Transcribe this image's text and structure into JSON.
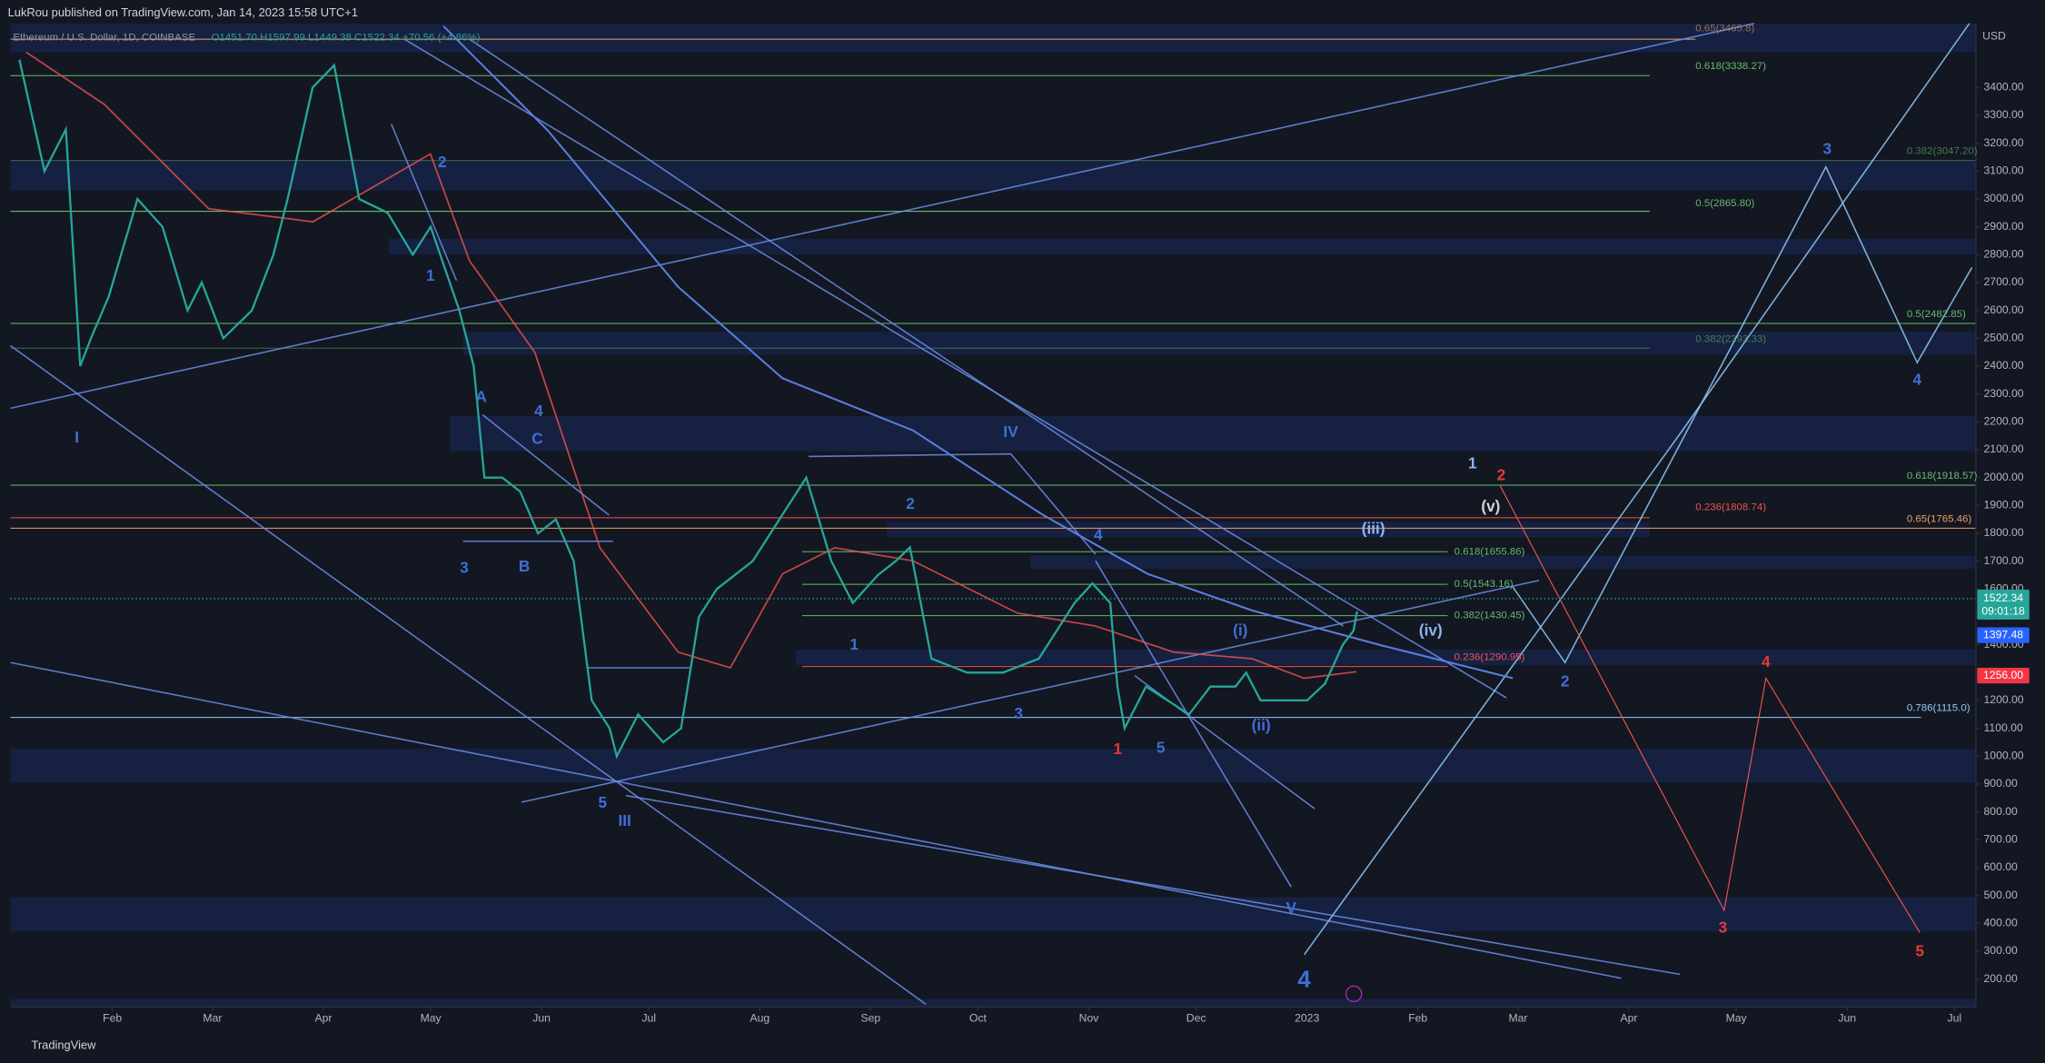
{
  "header": {
    "publisher": "LukRou published on TradingView.com, Jan 14, 2023 15:58 UTC+1",
    "symbol": "Ethereum / U.S. Dollar, 1D, COINBASE",
    "ohlc": "O1451.70 H1597.99 L1449.38 C1522.34 +70.56 (+4.86%)"
  },
  "chart_data": {
    "type": "line",
    "color": "#26a69a",
    "unit": "USD",
    "grid": false,
    "x": [
      5,
      12,
      18,
      22,
      25,
      30,
      38,
      45,
      52,
      56,
      62,
      70,
      76,
      80,
      87,
      93,
      100,
      108,
      115,
      120,
      128,
      132,
      135,
      140,
      145,
      150,
      155,
      160,
      165,
      170,
      172,
      178,
      185,
      190,
      195,
      200,
      210,
      220,
      225,
      232,
      238,
      245,
      250,
      254,
      260,
      270,
      280,
      290,
      300,
      305,
      310,
      312,
      314,
      320,
      326,
      332,
      338,
      345,
      348,
      352,
      360,
      365,
      370,
      375,
      378,
      379
    ],
    "values": [
      3500,
      3100,
      3250,
      2400,
      2500,
      2650,
      3000,
      2900,
      2600,
      2700,
      2500,
      2600,
      2800,
      3000,
      3400,
      3480,
      3000,
      2950,
      2800,
      2900,
      2600,
      2400,
      2000,
      2000,
      1950,
      1800,
      1850,
      1700,
      1200,
      1100,
      1000,
      1150,
      1050,
      1100,
      1500,
      1600,
      1700,
      1900,
      2000,
      1700,
      1550,
      1650,
      1700,
      1750,
      1350,
      1300,
      1300,
      1350,
      1550,
      1620,
      1550,
      1250,
      1100,
      1250,
      1200,
      1150,
      1250,
      1250,
      1300,
      1200,
      1200,
      1200,
      1260,
      1400,
      1450,
      1520
    ],
    "xlim": [
      2.5,
      552
    ],
    "xticks": [
      {
        "value": 31,
        "label": "Feb"
      },
      {
        "value": 59,
        "label": "Mar"
      },
      {
        "value": 90,
        "label": "Apr"
      },
      {
        "value": 120,
        "label": "May"
      },
      {
        "value": 151,
        "label": "Jun"
      },
      {
        "value": 181,
        "label": "Jul"
      },
      {
        "value": 212,
        "label": "Aug"
      },
      {
        "value": 243,
        "label": "Sep"
      },
      {
        "value": 273,
        "label": "Oct"
      },
      {
        "value": 304,
        "label": "Nov"
      },
      {
        "value": 334,
        "label": "Dec"
      },
      {
        "value": 365,
        "label": "2023"
      },
      {
        "value": 396,
        "label": "Feb"
      },
      {
        "value": 424,
        "label": "Mar"
      },
      {
        "value": 455,
        "label": "Apr"
      },
      {
        "value": 485,
        "label": "May"
      },
      {
        "value": 516,
        "label": "Jun"
      },
      {
        "value": 546,
        "label": "Jul"
      }
    ],
    "ylim": [
      100,
      3630
    ],
    "yticks": [
      {
        "value": 200,
        "label": "200.00"
      },
      {
        "value": 300,
        "label": "300.00"
      },
      {
        "value": 400,
        "label": "400.00"
      },
      {
        "value": 500,
        "label": "500.00"
      },
      {
        "value": 600,
        "label": "600.00"
      },
      {
        "value": 700,
        "label": "700.00"
      },
      {
        "value": 800,
        "label": "800.00"
      },
      {
        "value": 900,
        "label": "900.00"
      },
      {
        "value": 1000,
        "label": "1000.00"
      },
      {
        "value": 1100,
        "label": "1100.00"
      },
      {
        "value": 1200,
        "label": "1200.00"
      },
      {
        "value": 1300,
        "label": "1300.00"
      },
      {
        "value": 1400,
        "label": "1400.00"
      },
      {
        "value": 1500,
        "label": "1500.00"
      },
      {
        "value": 1600,
        "label": "1600.00"
      },
      {
        "value": 1700,
        "label": "1700.00"
      },
      {
        "value": 1800,
        "label": "1800.00"
      },
      {
        "value": 1900,
        "label": "1900.00"
      },
      {
        "value": 2000,
        "label": "2000.00"
      },
      {
        "value": 2100,
        "label": "2100.00"
      },
      {
        "value": 2200,
        "label": "2200.00"
      },
      {
        "value": 2300,
        "label": "2300.00"
      },
      {
        "value": 2400,
        "label": "2400.00"
      },
      {
        "value": 2500,
        "label": "2500.00"
      },
      {
        "value": 2600,
        "label": "2600.00"
      },
      {
        "value": 2700,
        "label": "2700.00"
      },
      {
        "value": 2800,
        "label": "2800.00"
      },
      {
        "value": 2900,
        "label": "2900.00"
      },
      {
        "value": 3000,
        "label": "3000.00"
      },
      {
        "value": 3100,
        "label": "3100.00"
      },
      {
        "value": 3200,
        "label": "3200.00"
      },
      {
        "value": 3300,
        "label": "3300.00"
      },
      {
        "value": 3400,
        "label": "3400.00"
      }
    ]
  },
  "badges": {
    "last": "1522.34",
    "countdown": "09:01:18",
    "blue": "1397.48",
    "red": "1256.00"
  },
  "annotations": [
    "I",
    "2",
    "1",
    "A",
    "4",
    "C",
    "3",
    "B",
    "5",
    "III",
    "IV",
    "2",
    "1",
    "4",
    "3",
    "1",
    "5",
    "(i)",
    "(ii)",
    "(iii)",
    "(iv)",
    "(v)",
    "1",
    "2",
    "2",
    "3",
    "4",
    "4",
    "3",
    "5",
    "V",
    "4"
  ],
  "fib_labels": [
    "0.65(3465.8)",
    "0.618(3338.27)",
    "0.382(3047.20)",
    "0.5(2865.80)",
    "0.5(2482.85)",
    "0.382(2393.33)",
    "0.618(1918.57)",
    "0.236(1808.74)",
    "0.65(1765.46)",
    "0.618(1655.86)",
    "0.5(1543.16)",
    "0.382(1430.45)",
    "0.236(1290.95)",
    "0.786(1115.0)"
  ],
  "footer": "TradingView"
}
